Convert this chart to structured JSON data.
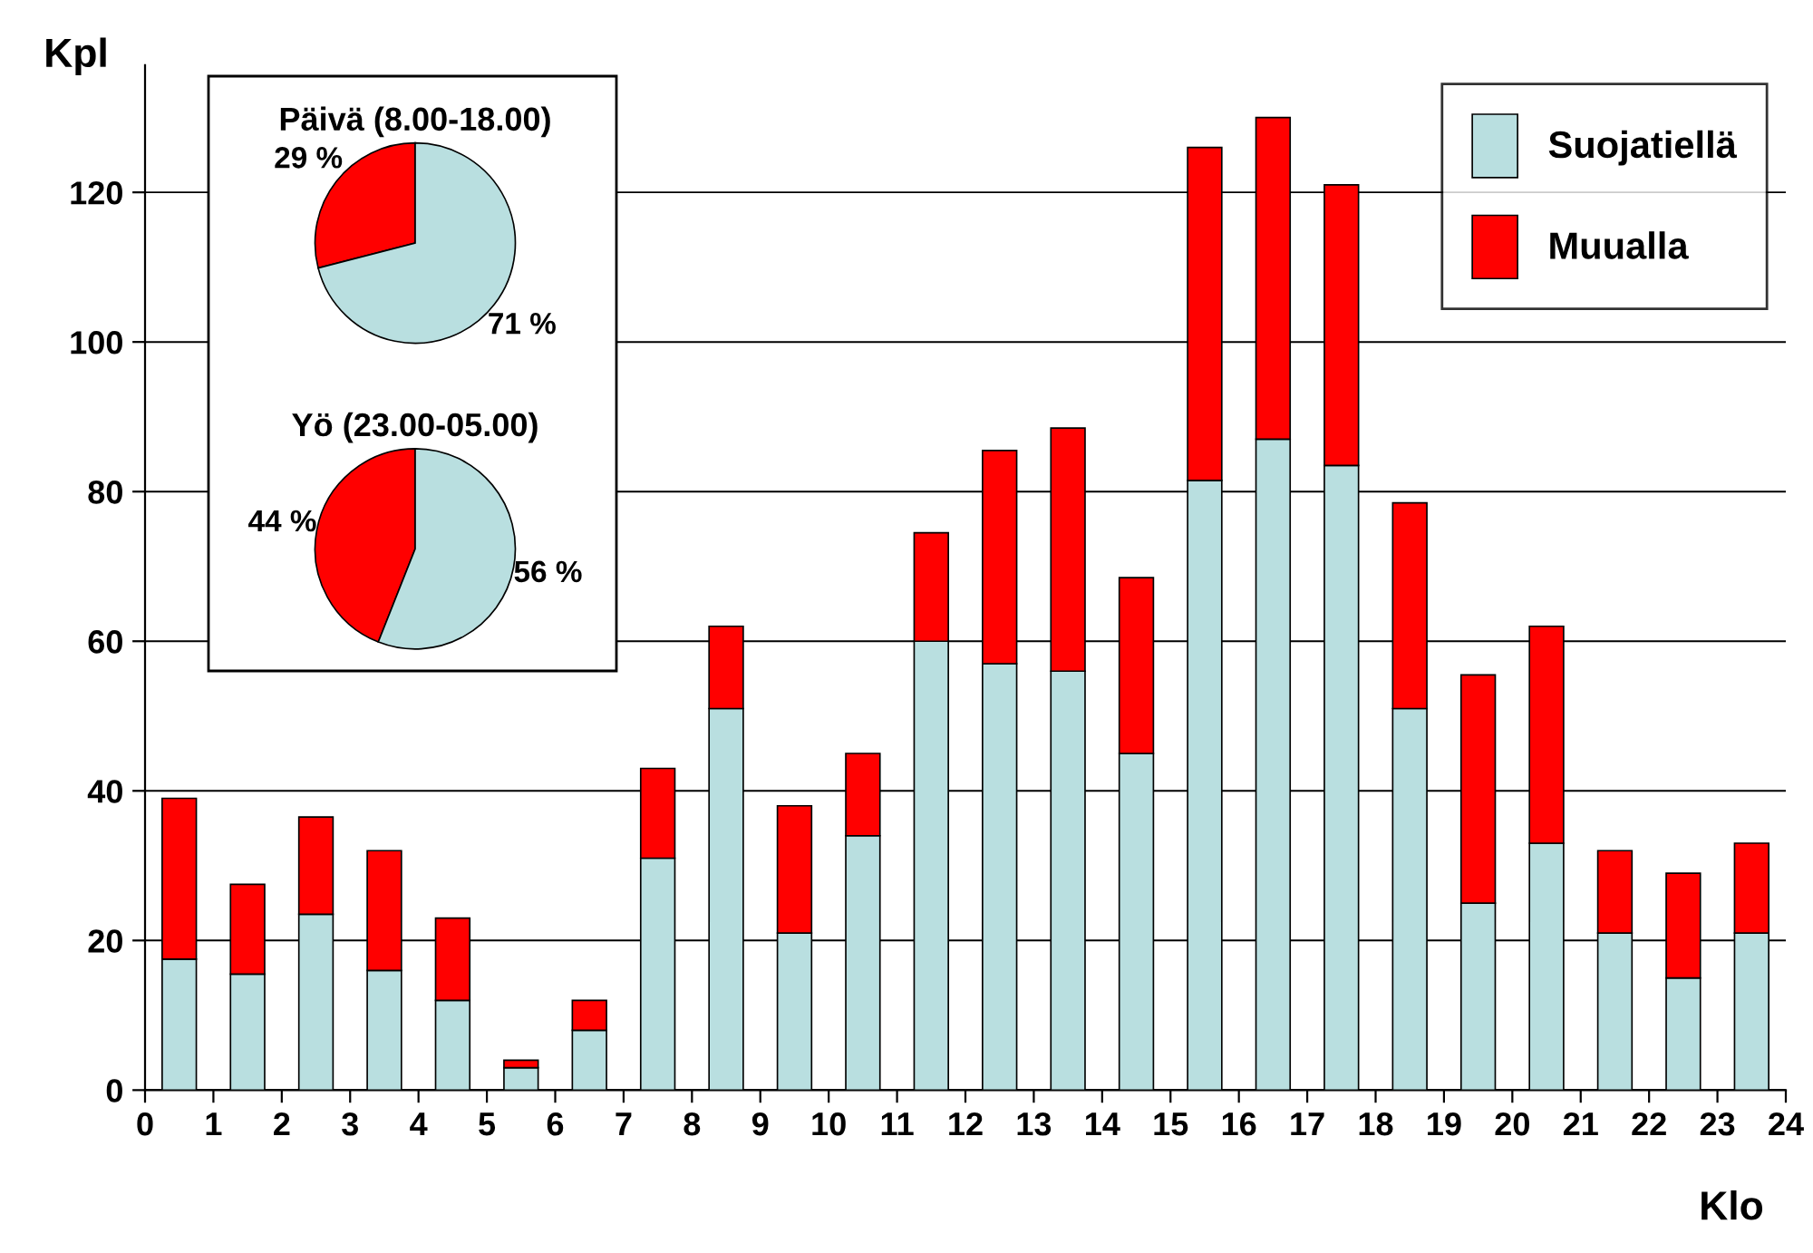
{
  "chart_data": [
    {
      "type": "bar",
      "stacked": true,
      "xlabel": "Klo",
      "ylabel": "Kpl",
      "x": [
        0.5,
        1.5,
        2.5,
        3.5,
        4.5,
        5.5,
        6.5,
        7.5,
        8.5,
        9.5,
        10.5,
        11.5,
        12.5,
        13.5,
        14.5,
        15.5,
        16.5,
        17.5,
        18.5,
        19.5,
        20.5,
        21.5,
        22.5,
        23.5
      ],
      "series": [
        {
          "name": "Suojatiellä",
          "color": "#b9dfe0",
          "values": [
            17.5,
            15.5,
            23.5,
            16,
            12,
            3,
            8,
            31,
            51,
            21,
            34,
            60,
            57,
            56,
            45,
            81.5,
            87,
            83.5,
            51,
            25,
            33,
            21,
            15,
            21
          ]
        },
        {
          "name": "Muualla",
          "color": "#ff0000",
          "values": [
            21.5,
            12,
            13,
            16,
            11,
            1,
            4,
            12,
            11,
            17,
            11,
            14.5,
            28.5,
            32.5,
            23.5,
            44.5,
            43,
            37.5,
            27.5,
            30.5,
            29,
            11,
            14,
            12
          ]
        }
      ],
      "xlim": [
        0,
        24
      ],
      "xticks": [
        0,
        1,
        2,
        3,
        4,
        5,
        6,
        7,
        8,
        9,
        10,
        11,
        12,
        13,
        14,
        15,
        16,
        17,
        18,
        19,
        20,
        21,
        22,
        23,
        24
      ],
      "ylim": [
        0,
        137
      ],
      "yticks": [
        0,
        20,
        40,
        60,
        80,
        100,
        120
      ],
      "grid": "y",
      "legend": "top right"
    },
    {
      "type": "pie",
      "title": "Päivä (8.00-18.00)",
      "categories": [
        null,
        null
      ],
      "values": [
        29,
        71
      ],
      "colors": [
        "#ff0000",
        "#b9dfe0"
      ],
      "value_labels": [
        "29 %",
        "71 %"
      ]
    },
    {
      "type": "pie",
      "title": "Yö (23.00-05.00)",
      "categories": [
        null,
        null
      ],
      "values": [
        44,
        56
      ],
      "colors": [
        "#ff0000",
        "#b9dfe0"
      ],
      "value_labels": [
        "44 %",
        "56 %"
      ]
    }
  ]
}
